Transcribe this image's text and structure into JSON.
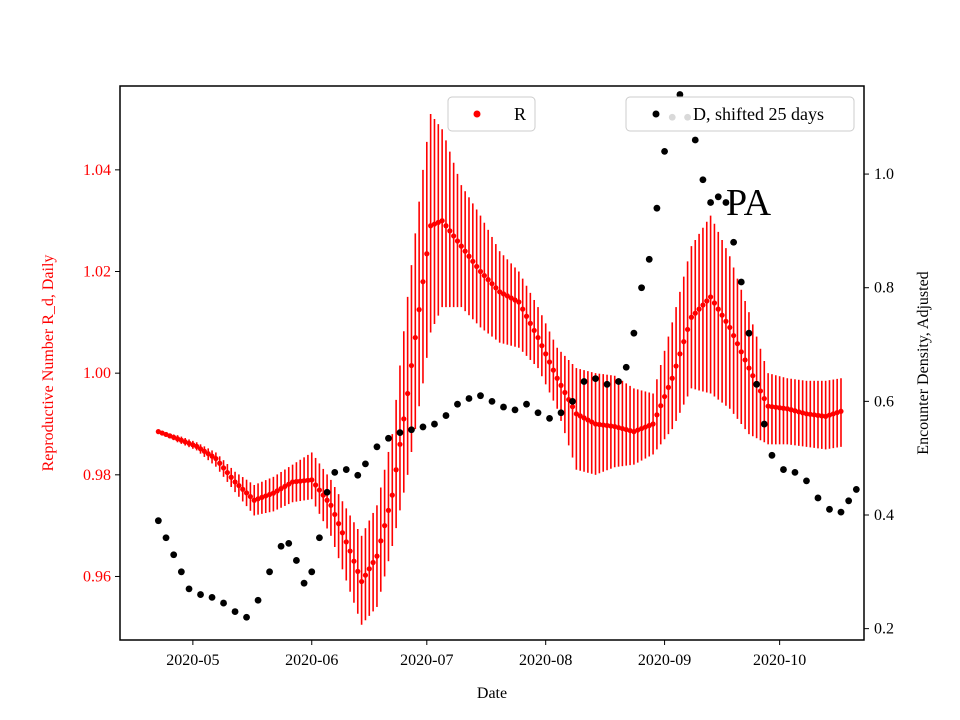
{
  "chart_data": {
    "type": "scatter",
    "xlabel": "Date",
    "ylabel_left": "Reproductive Number R_d, Daily",
    "ylabel_right": "Encounter Density, Adjusted",
    "annotation": "PA",
    "x_ticks": [
      "2020-05",
      "2020-06",
      "2020-07",
      "2020-08",
      "2020-09",
      "2020-10"
    ],
    "y_left_ticks": [
      "0.96",
      "0.98",
      "1.00",
      "1.02",
      "1.04"
    ],
    "y_right_ticks": [
      "0.2",
      "0.4",
      "0.6",
      "0.8",
      "1.0"
    ],
    "y_left_range": [
      0.9475,
      1.0565
    ],
    "y_right_range": [
      0.18,
      1.155
    ],
    "x_range_days_label": "2020-04-12 to 2020-10-23",
    "colors": {
      "R": "#ff0000",
      "D": "#000000"
    },
    "legend": [
      {
        "label": "R",
        "color": "#ff0000",
        "position": "top-center"
      },
      {
        "label": "D, shifted 25 days",
        "color": "#000000",
        "position": "top-right"
      }
    ],
    "series": [
      {
        "name": "R",
        "axis": "left",
        "style": "points with error bars",
        "points": [
          [
            "2020-04-22",
            0.9885,
            0.9885,
            0.9885
          ],
          [
            "2020-04-27",
            0.9871,
            0.9878,
            0.9864
          ],
          [
            "2020-05-02",
            0.9856,
            0.9864,
            0.9848
          ],
          [
            "2020-05-07",
            0.9832,
            0.9844,
            0.9816
          ],
          [
            "2020-05-12",
            0.9786,
            0.9806,
            0.9766
          ],
          [
            "2020-05-17",
            0.975,
            0.978,
            0.972
          ],
          [
            "2020-05-22",
            0.9764,
            0.9796,
            0.9728
          ],
          [
            "2020-05-27",
            0.9786,
            0.982,
            0.9746
          ],
          [
            "2020-06-01",
            0.979,
            0.9844,
            0.9752
          ],
          [
            "2020-06-06",
            0.974,
            0.979,
            0.968
          ],
          [
            "2020-06-11",
            0.965,
            0.972,
            0.957
          ],
          [
            "2020-06-14",
            0.959,
            0.968,
            0.9505
          ],
          [
            "2020-06-18",
            0.964,
            0.974,
            0.954
          ],
          [
            "2020-06-22",
            0.976,
            0.988,
            0.966
          ],
          [
            "2020-06-26",
            0.996,
            1.015,
            0.98
          ],
          [
            "2020-06-30",
            1.018,
            1.04,
            0.998
          ],
          [
            "2020-07-02",
            1.029,
            1.051,
            1.008
          ],
          [
            "2020-07-05",
            1.03,
            1.048,
            1.013
          ],
          [
            "2020-07-10",
            1.025,
            1.037,
            1.013
          ],
          [
            "2020-07-15",
            1.02,
            1.031,
            1.009
          ],
          [
            "2020-07-20",
            1.016,
            1.024,
            1.006
          ],
          [
            "2020-07-25",
            1.014,
            1.02,
            1.005
          ],
          [
            "2020-07-30",
            1.007,
            1.013,
            1.001
          ],
          [
            "2020-08-04",
            0.999,
            1.005,
            0.993
          ],
          [
            "2020-08-09",
            0.992,
            1.001,
            0.981
          ],
          [
            "2020-08-14",
            0.99,
            1.0,
            0.98
          ],
          [
            "2020-08-19",
            0.9895,
            0.9995,
            0.9815
          ],
          [
            "2020-08-24",
            0.9885,
            0.997,
            0.982
          ],
          [
            "2020-08-29",
            0.99,
            0.996,
            0.984
          ],
          [
            "2020-09-03",
            0.999,
            1.01,
            0.989
          ],
          [
            "2020-09-08",
            1.011,
            1.025,
            0.997
          ],
          [
            "2020-09-13",
            1.015,
            1.031,
            0.996
          ],
          [
            "2020-09-18",
            1.009,
            1.023,
            0.993
          ],
          [
            "2020-09-23",
            1.001,
            1.012,
            0.988
          ],
          [
            "2020-09-28",
            0.9935,
            1.0,
            0.986
          ],
          [
            "2020-10-03",
            0.993,
            0.999,
            0.986
          ],
          [
            "2020-10-08",
            0.992,
            0.9985,
            0.9855
          ],
          [
            "2020-10-13",
            0.9915,
            0.9985,
            0.985
          ],
          [
            "2020-10-17",
            0.9925,
            0.999,
            0.9855
          ]
        ]
      },
      {
        "name": "D, shifted 25 days",
        "axis": "right",
        "style": "points",
        "points": [
          [
            "2020-04-22",
            0.39
          ],
          [
            "2020-04-24",
            0.36
          ],
          [
            "2020-04-26",
            0.33
          ],
          [
            "2020-04-28",
            0.3
          ],
          [
            "2020-04-30",
            0.27
          ],
          [
            "2020-05-03",
            0.26
          ],
          [
            "2020-05-06",
            0.255
          ],
          [
            "2020-05-09",
            0.245
          ],
          [
            "2020-05-12",
            0.23
          ],
          [
            "2020-05-15",
            0.22
          ],
          [
            "2020-05-18",
            0.25
          ],
          [
            "2020-05-21",
            0.3
          ],
          [
            "2020-05-24",
            0.345
          ],
          [
            "2020-05-26",
            0.35
          ],
          [
            "2020-05-28",
            0.32
          ],
          [
            "2020-05-30",
            0.28
          ],
          [
            "2020-06-01",
            0.3
          ],
          [
            "2020-06-03",
            0.36
          ],
          [
            "2020-06-05",
            0.44
          ],
          [
            "2020-06-07",
            0.475
          ],
          [
            "2020-06-10",
            0.48
          ],
          [
            "2020-06-13",
            0.47
          ],
          [
            "2020-06-15",
            0.49
          ],
          [
            "2020-06-18",
            0.52
          ],
          [
            "2020-06-21",
            0.535
          ],
          [
            "2020-06-24",
            0.545
          ],
          [
            "2020-06-27",
            0.55
          ],
          [
            "2020-06-30",
            0.555
          ],
          [
            "2020-07-03",
            0.56
          ],
          [
            "2020-07-06",
            0.575
          ],
          [
            "2020-07-09",
            0.595
          ],
          [
            "2020-07-12",
            0.605
          ],
          [
            "2020-07-15",
            0.61
          ],
          [
            "2020-07-18",
            0.6
          ],
          [
            "2020-07-21",
            0.59
          ],
          [
            "2020-07-24",
            0.585
          ],
          [
            "2020-07-27",
            0.595
          ],
          [
            "2020-07-30",
            0.58
          ],
          [
            "2020-08-02",
            0.57
          ],
          [
            "2020-08-05",
            0.58
          ],
          [
            "2020-08-08",
            0.6
          ],
          [
            "2020-08-11",
            0.635
          ],
          [
            "2020-08-14",
            0.64
          ],
          [
            "2020-08-17",
            0.63
          ],
          [
            "2020-08-20",
            0.635
          ],
          [
            "2020-08-22",
            0.66
          ],
          [
            "2020-08-24",
            0.72
          ],
          [
            "2020-08-26",
            0.8
          ],
          [
            "2020-08-28",
            0.85
          ],
          [
            "2020-08-30",
            0.94
          ],
          [
            "2020-09-01",
            1.04
          ],
          [
            "2020-09-03",
            1.1
          ],
          [
            "2020-09-05",
            1.14
          ],
          [
            "2020-09-07",
            1.1
          ],
          [
            "2020-09-09",
            1.06
          ],
          [
            "2020-09-11",
            0.99
          ],
          [
            "2020-09-13",
            0.95
          ],
          [
            "2020-09-15",
            0.96
          ],
          [
            "2020-09-17",
            0.95
          ],
          [
            "2020-09-19",
            0.88
          ],
          [
            "2020-09-21",
            0.81
          ],
          [
            "2020-09-23",
            0.72
          ],
          [
            "2020-09-25",
            0.63
          ],
          [
            "2020-09-27",
            0.56
          ],
          [
            "2020-09-29",
            0.505
          ],
          [
            "2020-10-02",
            0.48
          ],
          [
            "2020-10-05",
            0.475
          ],
          [
            "2020-10-08",
            0.46
          ],
          [
            "2020-10-11",
            0.43
          ],
          [
            "2020-10-14",
            0.41
          ],
          [
            "2020-10-17",
            0.405
          ],
          [
            "2020-10-19",
            0.425
          ],
          [
            "2020-10-21",
            0.445
          ]
        ]
      }
    ]
  }
}
